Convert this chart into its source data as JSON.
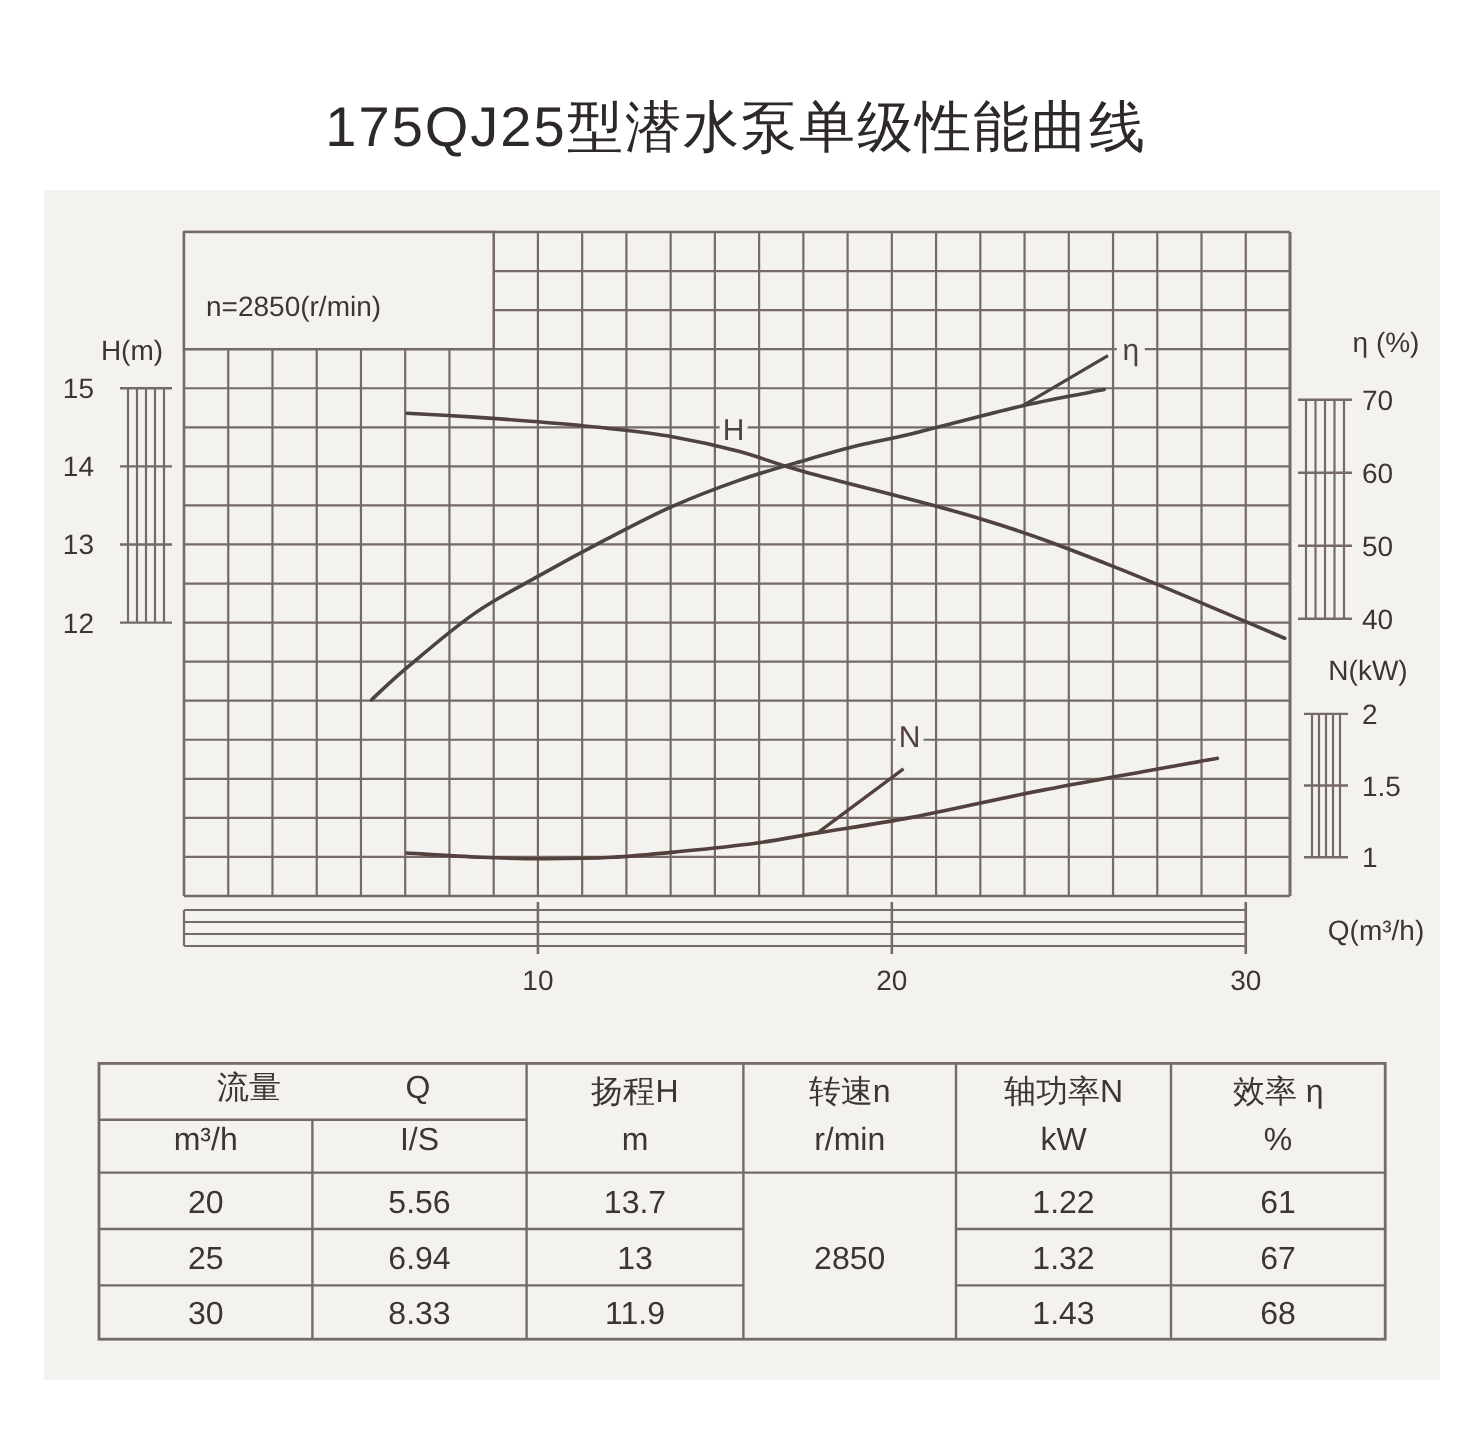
{
  "chart_data": [
    {
      "type": "line",
      "title": "175QJ25型潜水泵单级性能曲线",
      "xlabel": "Q(m³/h)",
      "ylabel": "H(m)",
      "y2label": "η (%)",
      "y3label": "N(kW)",
      "xlim": [
        0,
        31.25
      ],
      "xticks": [
        10,
        20,
        30
      ],
      "ylim": [
        8.5,
        17
      ],
      "yticks": [
        12,
        13,
        14,
        15
      ],
      "y2lim": [
        2,
        93
      ],
      "y2ticks": [
        40,
        50,
        60,
        70
      ],
      "y3lim": [
        0.73,
        5.36
      ],
      "y3ticks": [
        1,
        1.5,
        2
      ],
      "grid": true,
      "annotations": [
        "n=2850(r/min)"
      ],
      "series": [
        {
          "name": "H",
          "color": "#4f4240",
          "axis": "y",
          "x": [
            6.3,
            8.2,
            10,
            11.9,
            13.8,
            15.7,
            17.6,
            22.5,
            26.2,
            31.1
          ],
          "values": [
            14.68,
            14.63,
            14.57,
            14.49,
            14.38,
            14.19,
            13.92,
            13.33,
            12.73,
            11.8
          ]
        },
        {
          "name": "η",
          "color": "#4a4444",
          "axis": "y2",
          "x": [
            5.3,
            6.3,
            8.2,
            10,
            11.9,
            13.8,
            15.7,
            17.6,
            19.1,
            20.6,
            23.7,
            26
          ],
          "values": [
            28.9,
            33.3,
            40.7,
            45.8,
            50.8,
            55.4,
            59,
            61.8,
            63.8,
            65.4,
            69.2,
            71.4
          ]
        },
        {
          "name": "N",
          "color": "#54403c",
          "axis": "y3",
          "x": [
            6.3,
            8.4,
            10.2,
            12.1,
            14,
            16.2,
            17.9,
            20.6,
            24.3,
            29.2
          ],
          "values": [
            1.03,
            1.0,
            0.99,
            1.0,
            1.04,
            1.1,
            1.17,
            1.28,
            1.47,
            1.69
          ]
        }
      ]
    },
    {
      "type": "other",
      "annotations": [
        "流量",
        "Q",
        "m³/h",
        "I/S",
        "扬程H",
        "m",
        "转速n",
        "r/min",
        "轴功率N",
        "kW",
        "效率 η",
        "%",
        "20",
        "5.56",
        "13.7",
        "1.22",
        "61",
        "25",
        "6.94",
        "13",
        "1.32",
        "67",
        "30",
        "8.33",
        "11.9",
        "1.43",
        "68",
        "2850"
      ]
    }
  ]
}
